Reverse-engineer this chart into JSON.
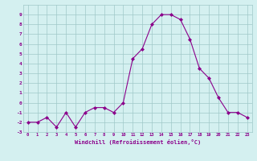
{
  "x": [
    0,
    1,
    2,
    3,
    4,
    5,
    6,
    7,
    8,
    9,
    10,
    11,
    12,
    13,
    14,
    15,
    16,
    17,
    18,
    19,
    20,
    21,
    22,
    23
  ],
  "y": [
    -2,
    -2,
    -1.5,
    -2.5,
    -1,
    -2.5,
    -1,
    -0.5,
    -0.5,
    -1,
    0,
    4.5,
    5.5,
    8,
    9,
    9,
    8.5,
    6.5,
    3.5,
    2.5,
    0.5,
    -1,
    -1,
    -1.5
  ],
  "ylim": [
    -3,
    10
  ],
  "yticks": [
    -3,
    -2,
    -1,
    0,
    1,
    2,
    3,
    4,
    5,
    6,
    7,
    8,
    9
  ],
  "xticks": [
    0,
    1,
    2,
    3,
    4,
    5,
    6,
    7,
    8,
    9,
    10,
    11,
    12,
    13,
    14,
    15,
    16,
    17,
    18,
    19,
    20,
    21,
    22,
    23
  ],
  "xlabel": "Windchill (Refroidissement éolien,°C)",
  "line_color": "#8B008B",
  "marker_color": "#8B008B",
  "bg_color": "#d4f0f0",
  "grid_color": "#a0c8c8",
  "tick_label_color": "#8B008B",
  "axis_label_color": "#8B008B"
}
